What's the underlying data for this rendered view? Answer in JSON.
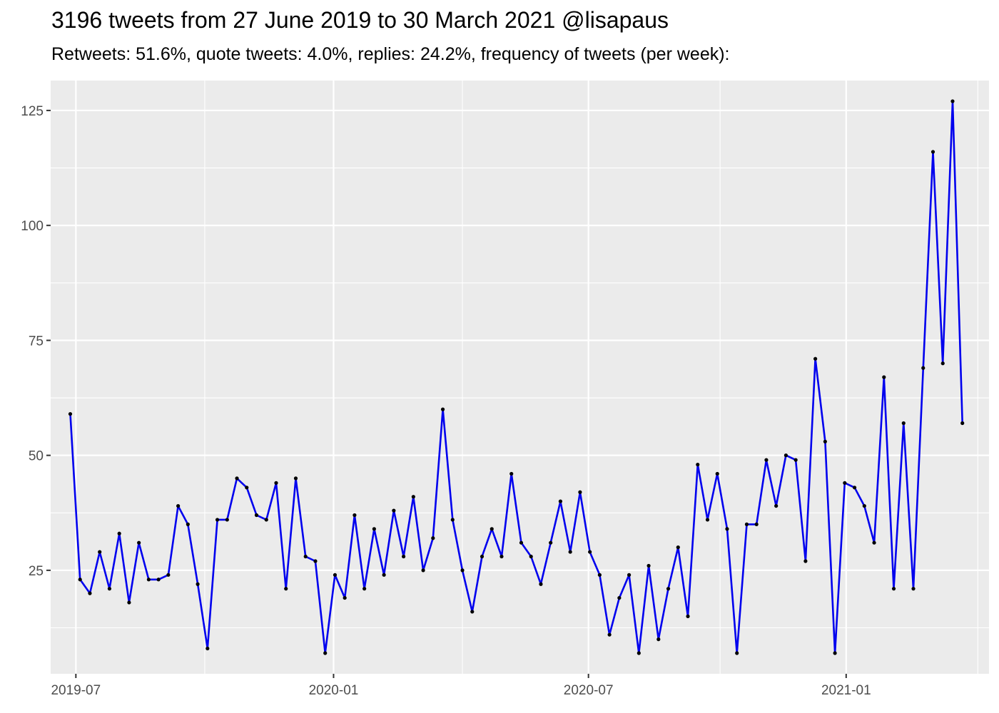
{
  "chart_data": {
    "type": "line",
    "title": "3196 tweets from 27 June 2019 to 30 March 2021 @lisapaus",
    "subtitle": "Retweets: 51.6%, quote tweets: 4.0%, replies: 24.2%, frequency of tweets (per week):",
    "xlabel": "",
    "ylabel": "",
    "x_start": "2019-06-27",
    "x_step_days": 7,
    "xlim": [
      "2019-06-13",
      "2021-04-13"
    ],
    "ylim": [
      2.5,
      131.5
    ],
    "x_ticks": [
      {
        "label": "2019-07",
        "date": "2019-07-01"
      },
      {
        "label": "2020-01",
        "date": "2020-01-01"
      },
      {
        "label": "2020-07",
        "date": "2020-07-01"
      },
      {
        "label": "2021-01",
        "date": "2021-01-01"
      }
    ],
    "y_ticks": [
      25,
      50,
      75,
      100,
      125
    ],
    "grid": true,
    "line_color": "#0000ee",
    "point_color": "#000000",
    "panel_color": "#ebebeb",
    "values": [
      59,
      23,
      20,
      29,
      21,
      33,
      18,
      31,
      23,
      23,
      24,
      39,
      35,
      22,
      8,
      36,
      36,
      45,
      43,
      37,
      36,
      44,
      21,
      45,
      28,
      27,
      7,
      24,
      19,
      37,
      21,
      34,
      24,
      38,
      28,
      41,
      25,
      32,
      60,
      36,
      25,
      16,
      28,
      34,
      28,
      46,
      31,
      28,
      22,
      31,
      40,
      29,
      42,
      29,
      24,
      11,
      19,
      24,
      7,
      26,
      10,
      21,
      30,
      15,
      48,
      36,
      46,
      34,
      7,
      35,
      35,
      49,
      39,
      50,
      49,
      27,
      71,
      53,
      7,
      44,
      43,
      39,
      31,
      67,
      21,
      57,
      21,
      69,
      116,
      70,
      127,
      57
    ]
  }
}
